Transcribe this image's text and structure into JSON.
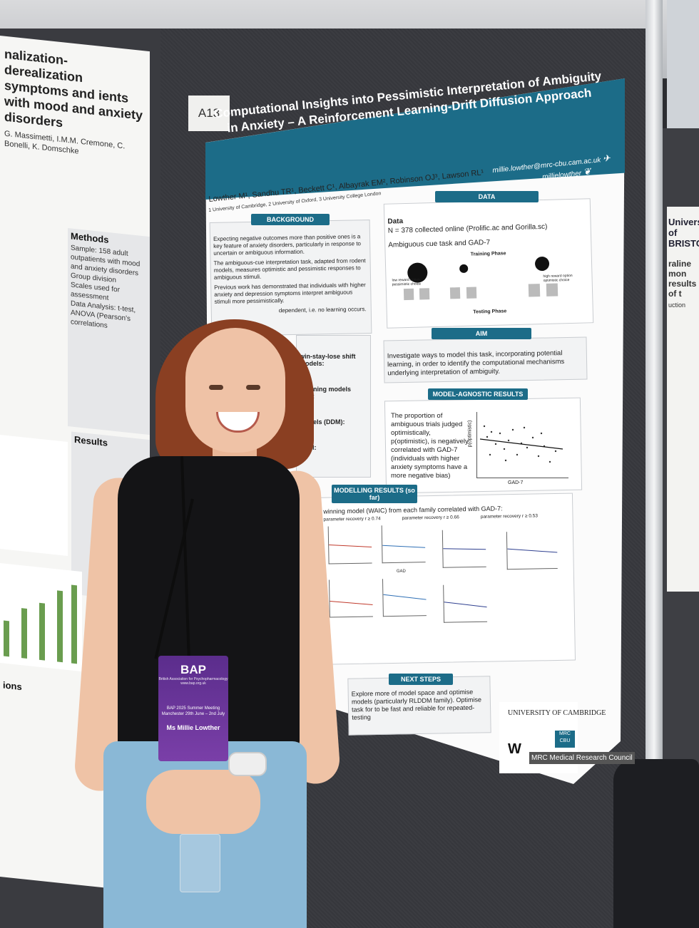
{
  "booth": {
    "label": "A13"
  },
  "poster": {
    "title": "Computational Insights into Pessimistic Interpretation of Ambiguity in Anxiety – A Reinforcement Learning-Drift Diffusion Approach",
    "email": "millie.lowther@mrc-cbu.cam.ac.uk",
    "handle": "millielowther",
    "authors": "Lowther M¹, Sandhu TR¹, Beckett C¹, Albayrak EM², Robinson OJ³, Lawson RL¹",
    "affiliations": "1 University of Cambridge, 2 University of Oxford, 3 University College London",
    "background": {
      "heading": "BACKGROUND",
      "paragraphs": [
        "Expecting negative outcomes more than positive ones is a key feature of anxiety disorders, particularly in response to uncertain or ambiguous information.",
        "The ambiguous-cue interpretation task, adapted from rodent models, measures optimistic and pessimistic responses to ambiguous stimuli.",
        "Previous work has demonstrated that individuals with higher anxiety and depression symptoms interpret ambiguous stimuli more pessimistically.",
        "dependent, i.e. no learning occurs."
      ]
    },
    "data": {
      "heading": "DATA",
      "subheading": "Data",
      "n_line": "N = 378 collected online (Prolific.ac and Gorilla.sc)",
      "task_line": "Ambiguous cue task and GAD-7",
      "training_phase": "Training Phase",
      "testing_phase": "Testing Phase",
      "low_reward": "low reward option pessimistic choice",
      "high_reward": "high reward option optimistic choice"
    },
    "aim": {
      "heading": "AIM",
      "text": "Investigate ways to model this task, incorporating potential learning, in order to identify the computational mechanisms underlying interpretation of ambiguity."
    },
    "modelling": {
      "fragment_1": "win-stay-lose shift models:",
      "fragment_2": "Learning models (RL):",
      "fragment_3": "models (DDM):",
      "fragment_4": "DDM:"
    },
    "model_agnostic": {
      "heading": "MODEL-AGNOSTIC RESULTS",
      "text": "The proportion of ambiguous trials judged optimistically, p(optimistic), is negatively correlated with GAD-7 (individuals with higher anxiety symptoms have a more negative bias)",
      "xlabel": "GAD-7",
      "ylabel": "p(optimistic)"
    },
    "modelling_results": {
      "heading": "MODELLING RESULTS (so far)",
      "line": "winning model (WAIC) from each family correlated with GAD-7:",
      "recovery_1": "parameter recovery r ≥ 0.74",
      "recovery_2": "parameter recovery r ≥ 0.66",
      "recovery_3": "parameter recovery r ≥ 0.53",
      "tick_label": "GAD"
    },
    "next_steps": {
      "heading": "NEXT STEPS",
      "text": "Explore more of model space and optimise models (particularly RLDDM family). Optimise task for to be fast and reliable for repeated-testing"
    },
    "logos": {
      "cambridge": "UNIVERSITY OF CAMBRIDGE",
      "mrc_cbu": "MRC CBU",
      "wellcome": "W",
      "mrc": "MRC Medical Research Council"
    }
  },
  "left_poster": {
    "title": "nalization-derealization symptoms and ients with mood and anxiety disorders",
    "authors": "G. Massimetti, I.M.M. Cremone, C. Bonelli, K. Domschke",
    "methods_heading": "Methods",
    "methods_items": [
      "Sample: 158 adult outpatients with mood and anxiety disorders",
      "Group division",
      "Scales used for assessment",
      "Data Analysis: t-test, ANOVA (Pearson's correlations"
    ],
    "results_heading": "Results",
    "conclusions_heading": "ions"
  },
  "right_poster": {
    "logo": "University of BRISTOL",
    "title": "raline mon results of t",
    "section": "uction"
  },
  "badge": {
    "logo": "BAP",
    "logo_sub": "British Association for Psychopharmacology www.bap.org.uk",
    "event": "BAP 2025 Summer Meeting Manchester 29th June – 2nd July",
    "name": "Ms Millie Lowther"
  },
  "colors": {
    "poster_teal": "#1c6c88",
    "badge_purple": "#5b2d8c",
    "hair": "#8a3f22"
  }
}
